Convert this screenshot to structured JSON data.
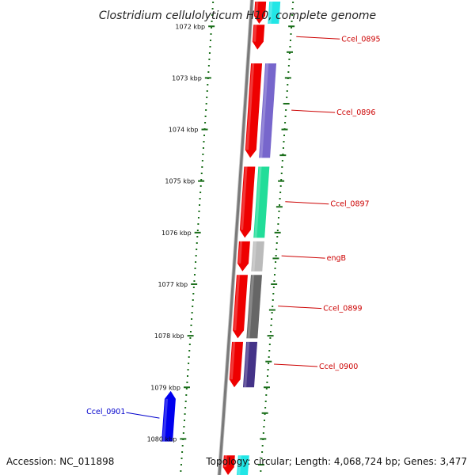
{
  "title": "Clostridium cellulolyticum H10, complete genome",
  "footer": {
    "accession": "Accession: NC_011898",
    "summary": "Topology: circular; Length: 4,068,724 bp; Genes: 3,477"
  },
  "colors": {
    "backbone": "#7a7a7a",
    "tick": "#1a6e1a",
    "forward_label": "#cc0000",
    "reverse_label": "#0000cc"
  },
  "ticks": [
    {
      "label": "1072 kbp"
    },
    {
      "label": "1073 kbp"
    },
    {
      "label": "1074 kbp"
    },
    {
      "label": "1075 kbp"
    },
    {
      "label": "1076 kbp"
    },
    {
      "label": "1077 kbp"
    },
    {
      "label": "1078 kbp"
    },
    {
      "label": "1079 kbp"
    },
    {
      "label": "1080 kbp"
    }
  ],
  "genes": [
    {
      "name": "",
      "start_kbp": 1071.5,
      "end_kbp": 1071.95,
      "strand": "+"
    },
    {
      "name": "Ccel_0895",
      "start_kbp": 1071.95,
      "end_kbp": 1072.45,
      "strand": "+"
    },
    {
      "name": "Ccel_0896",
      "start_kbp": 1072.7,
      "end_kbp": 1074.55,
      "strand": "+"
    },
    {
      "name": "Ccel_0897",
      "start_kbp": 1074.7,
      "end_kbp": 1076.1,
      "strand": "+"
    },
    {
      "name": "engB",
      "start_kbp": 1076.15,
      "end_kbp": 1076.75,
      "strand": "+"
    },
    {
      "name": "Ccel_0899",
      "start_kbp": 1076.8,
      "end_kbp": 1078.05,
      "strand": "+"
    },
    {
      "name": "Ccel_0900",
      "start_kbp": 1078.1,
      "end_kbp": 1079.0,
      "strand": "+"
    },
    {
      "name": "Ccel_0901",
      "start_kbp": 1079.05,
      "end_kbp": 1080.05,
      "strand": "-"
    },
    {
      "name": "",
      "start_kbp": 1080.3,
      "end_kbp": 1080.7,
      "strand": "+"
    }
  ],
  "features": [
    {
      "name": "",
      "start_kbp": 1071.5,
      "end_kbp": 1071.95,
      "color": "#22e6e6"
    },
    {
      "name": "Ccel_0896",
      "start_kbp": 1072.7,
      "end_kbp": 1074.55,
      "color": "#7766cc"
    },
    {
      "name": "Ccel_0897",
      "start_kbp": 1074.7,
      "end_kbp": 1076.1,
      "color": "#22dd99"
    },
    {
      "name": "engB",
      "start_kbp": 1076.15,
      "end_kbp": 1076.75,
      "color": "#bbbbbb"
    },
    {
      "name": "Ccel_0899",
      "start_kbp": 1076.8,
      "end_kbp": 1078.05,
      "color": "#666666"
    },
    {
      "name": "Ccel_0900",
      "start_kbp": 1078.1,
      "end_kbp": 1079.0,
      "color": "#443388"
    },
    {
      "name": "",
      "start_kbp": 1080.3,
      "end_kbp": 1080.7,
      "color": "#22e6e6"
    }
  ]
}
